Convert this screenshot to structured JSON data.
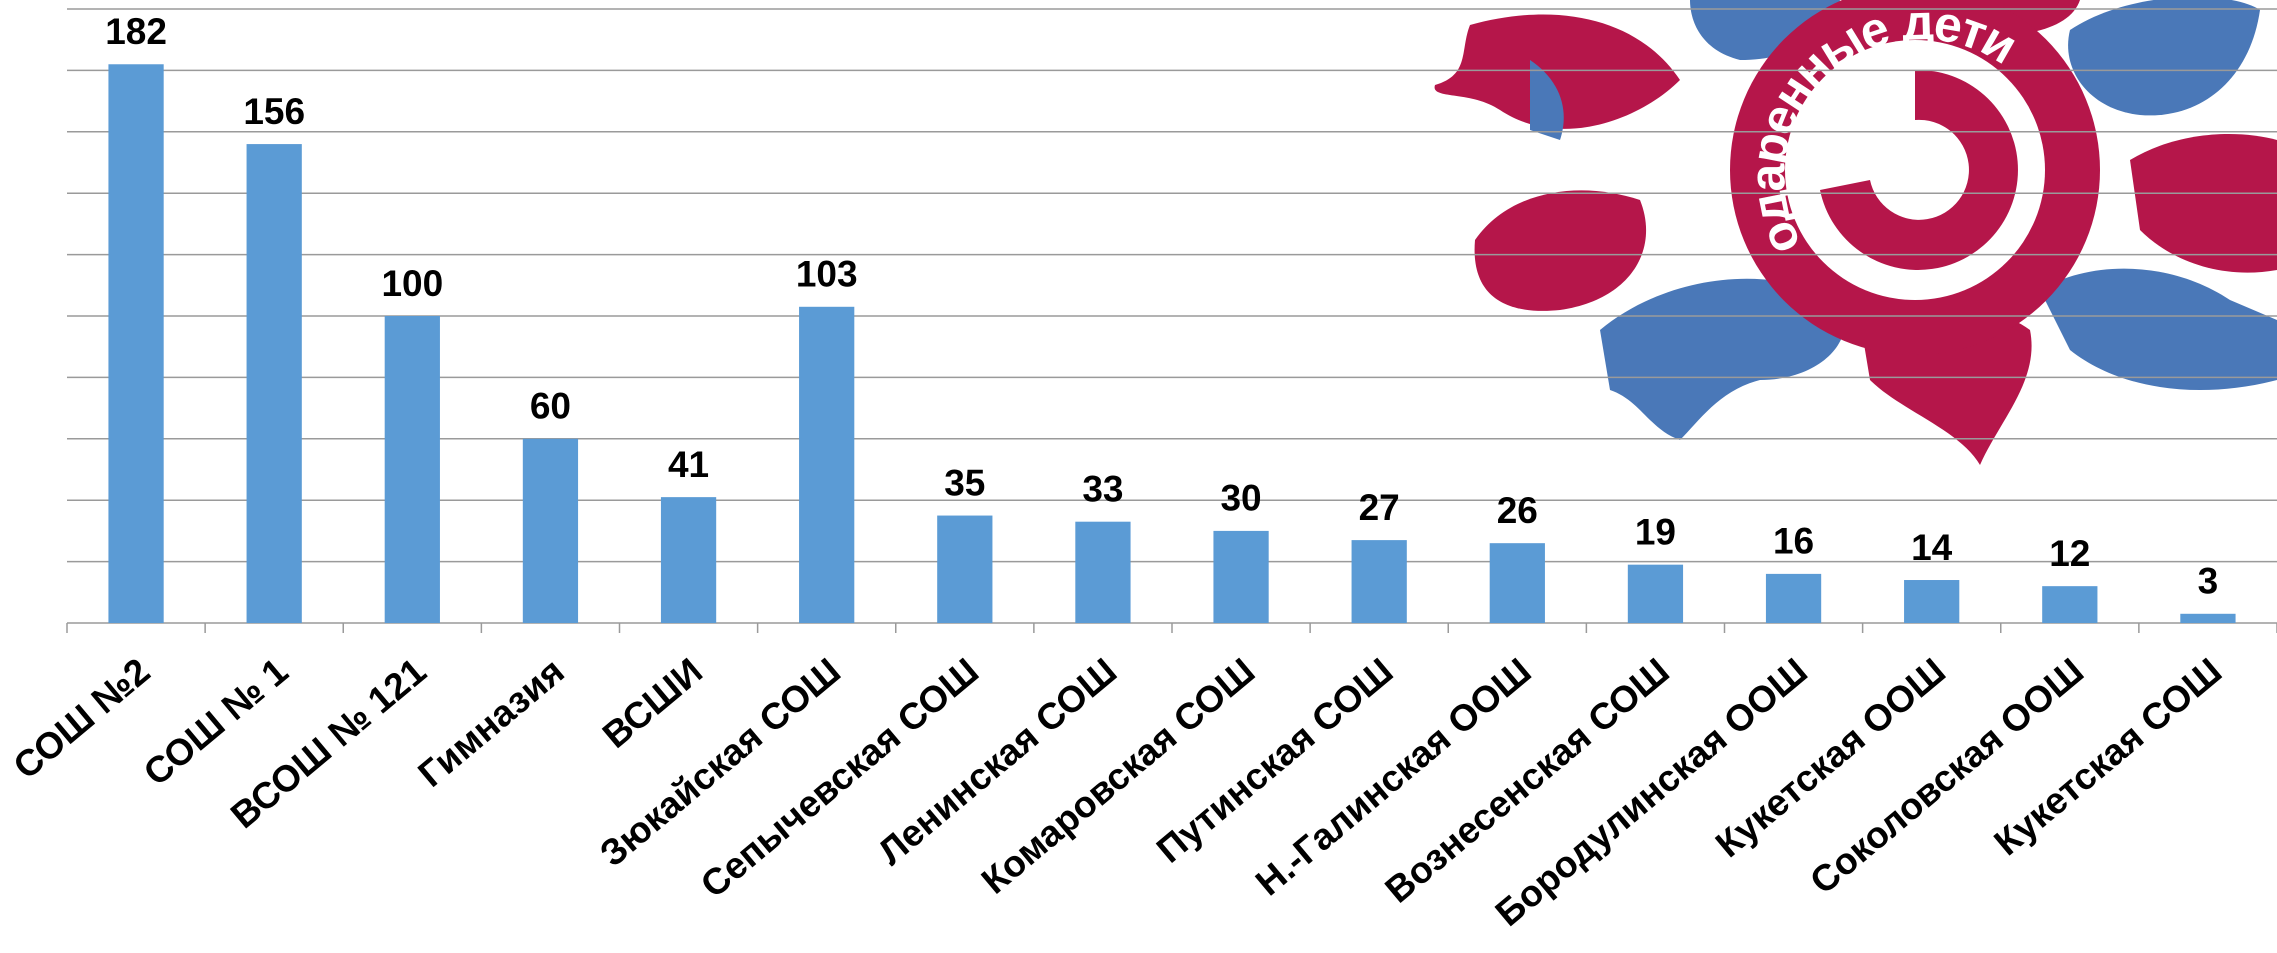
{
  "chart_data": {
    "type": "bar",
    "categories": [
      "СОШ №2",
      "СОШ № 1",
      "ВСОШ № 121",
      "Гимназия",
      "ВСШИ",
      "Зюкайская СОШ",
      "Сепычевская СОШ",
      "Ленинская СОШ",
      "Комаровская СОШ",
      "Путинская СОШ",
      "Н.-Галинская ООШ",
      "Вознесенская СОШ",
      "Бородулинская ООШ",
      "Кукетская ООШ",
      "Соколовская ООШ",
      "Кукетская СОШ"
    ],
    "values": [
      182,
      156,
      100,
      60,
      41,
      103,
      35,
      33,
      30,
      27,
      26,
      19,
      16,
      14,
      12,
      3
    ],
    "color": "#5b9bd5",
    "ylim": [
      0,
      200
    ],
    "yticks": [
      0,
      20,
      40,
      60,
      80,
      100,
      120,
      140,
      160,
      180,
      200
    ],
    "grid": true
  },
  "logo": {
    "text": "одаренные дети"
  }
}
